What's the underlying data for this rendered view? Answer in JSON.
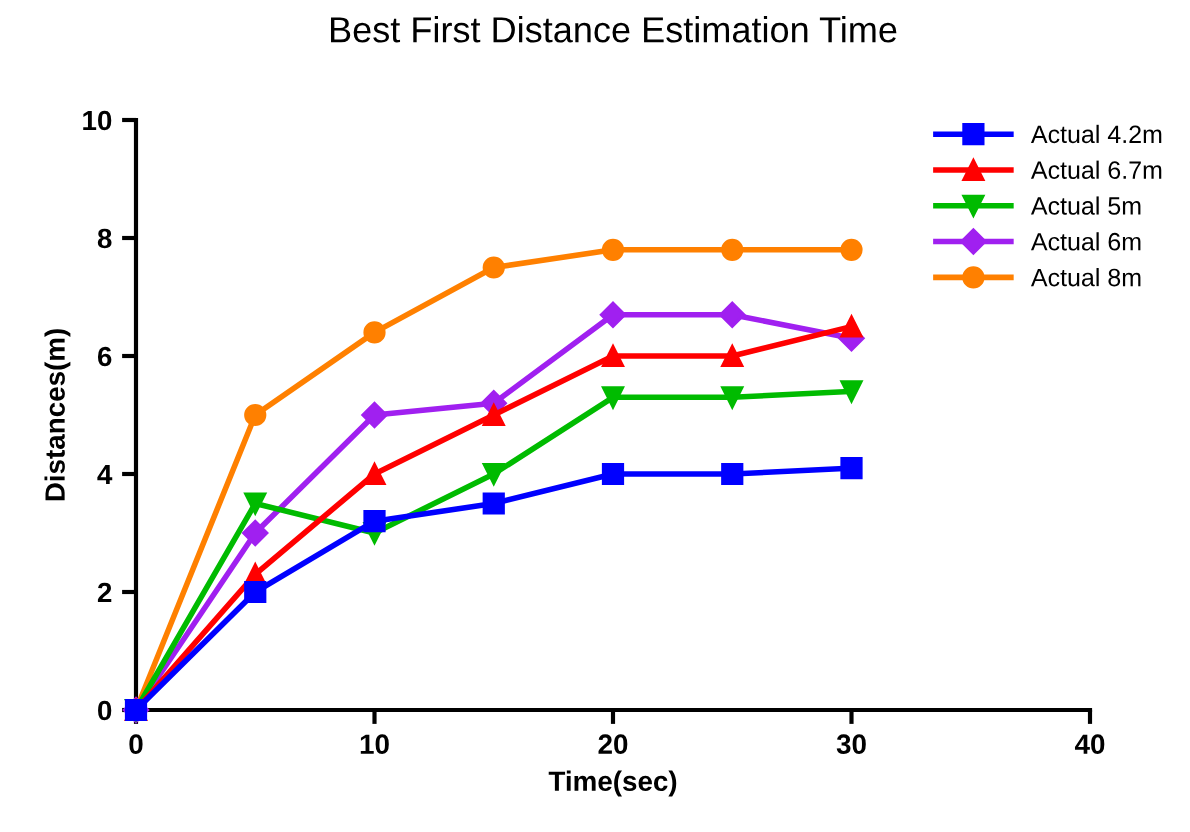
{
  "chart_data": {
    "type": "line",
    "title": "Best First Distance Estimation Time",
    "xlabel": "Time(sec)",
    "ylabel": "Distances(m)",
    "x": [
      0,
      5,
      10,
      15,
      20,
      25,
      30
    ],
    "series": [
      {
        "name": "Actual 4.2m",
        "color": "#0000ff",
        "marker": "square",
        "values": [
          0,
          2.0,
          3.2,
          3.5,
          4.0,
          4.0,
          4.1
        ]
      },
      {
        "name": "Actual 6.7m",
        "color": "#ff0000",
        "marker": "triangle",
        "values": [
          0,
          2.3,
          4.0,
          5.0,
          6.0,
          6.0,
          6.5
        ]
      },
      {
        "name": "Actual 5m",
        "color": "#00bb00",
        "marker": "triangle_down",
        "values": [
          0,
          3.5,
          3.0,
          4.0,
          5.3,
          5.3,
          5.4
        ]
      },
      {
        "name": "Actual 6m",
        "color": "#a020f0",
        "marker": "diamond",
        "values": [
          0,
          3.0,
          5.0,
          5.2,
          6.7,
          6.7,
          6.3
        ]
      },
      {
        "name": "Actual 8m",
        "color": "#ff8000",
        "marker": "circle",
        "values": [
          0,
          5.0,
          6.4,
          7.5,
          7.8,
          7.8,
          7.8
        ]
      }
    ],
    "xlim": [
      0,
      40
    ],
    "xticks": [
      0,
      10,
      20,
      30,
      40
    ],
    "ylim": [
      0,
      10
    ],
    "yticks": [
      0,
      2,
      4,
      6,
      8,
      10
    ],
    "grid": false,
    "legend": "top right",
    "line_style": "solid"
  }
}
